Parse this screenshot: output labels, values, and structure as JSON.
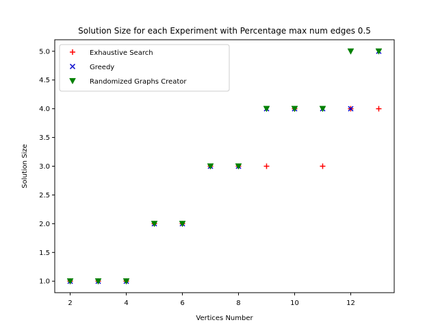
{
  "chart_data": {
    "type": "scatter",
    "title": "Solution Size for each Experiment with Percentage max num edges 0.5",
    "xlabel": "Vertices Number",
    "ylabel": "Solution Size",
    "xlim": [
      1.45,
      13.55
    ],
    "ylim": [
      0.8,
      5.2
    ],
    "xticks": [
      2,
      4,
      6,
      8,
      10,
      12
    ],
    "xtick_labels": [
      "2",
      "4",
      "6",
      "8",
      "10",
      "12"
    ],
    "yticks": [
      1.0,
      1.5,
      2.0,
      2.5,
      3.0,
      3.5,
      4.0,
      4.5,
      5.0
    ],
    "ytick_labels": [
      "1.0",
      "1.5",
      "2.0",
      "2.5",
      "3.0",
      "3.5",
      "4.0",
      "4.5",
      "5.0"
    ],
    "grid": false,
    "legend_position": "top-left",
    "series": [
      {
        "name": "Exhaustive Search",
        "marker": "plus",
        "color": "#ff0000",
        "x": [
          2,
          3,
          4,
          5,
          6,
          7,
          8,
          9,
          10,
          11,
          12,
          13
        ],
        "y": [
          1,
          1,
          1,
          2,
          2,
          3,
          3,
          3,
          4,
          3,
          4,
          4
        ]
      },
      {
        "name": "Greedy",
        "marker": "x",
        "color": "#0000cc",
        "x": [
          2,
          3,
          4,
          5,
          6,
          7,
          8,
          9,
          10,
          11,
          12,
          13
        ],
        "y": [
          1,
          1,
          1,
          2,
          2,
          3,
          3,
          4,
          4,
          4,
          4,
          5
        ]
      },
      {
        "name": "Randomized Graphs Creator",
        "marker": "triangle-down",
        "color": "#008000",
        "x": [
          2,
          3,
          4,
          5,
          6,
          7,
          8,
          9,
          10,
          11,
          12,
          13
        ],
        "y": [
          1,
          1,
          1,
          2,
          2,
          3,
          3,
          4,
          4,
          4,
          5,
          5
        ]
      }
    ]
  }
}
